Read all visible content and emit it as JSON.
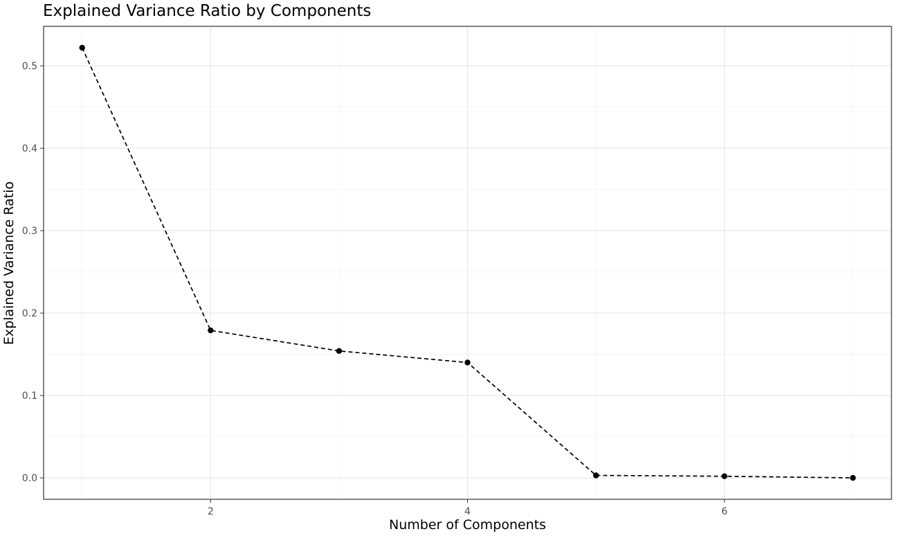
{
  "chart_data": {
    "type": "line",
    "title": "Explained Variance Ratio by Components",
    "xlabel": "Number of Components",
    "ylabel": "Explained Variance Ratio",
    "x": [
      1,
      2,
      3,
      4,
      5,
      6,
      7
    ],
    "values": [
      0.522,
      0.179,
      0.154,
      0.14,
      0.003,
      0.002,
      0.0
    ],
    "xlim": [
      0.7,
      7.3
    ],
    "ylim": [
      -0.026,
      0.548
    ],
    "x_ticks": [
      2,
      4,
      6
    ],
    "x_tick_labels": [
      "2",
      "4",
      "6"
    ],
    "x_minor_ticks": [
      1,
      3,
      5,
      7
    ],
    "y_ticks": [
      0.0,
      0.1,
      0.2,
      0.3,
      0.4,
      0.5
    ],
    "y_tick_labels": [
      "0.0",
      "0.1",
      "0.2",
      "0.3",
      "0.4",
      "0.5"
    ],
    "y_minor_ticks": [
      0.05,
      0.15,
      0.25,
      0.35,
      0.45
    ],
    "grid": true,
    "legend": "none",
    "line_style": "dashed",
    "marker": "point",
    "colors": {
      "line": "#000000",
      "point": "#000000",
      "panel_border": "#333333",
      "grid_major": "#ebebeb",
      "grid_minor": "#f5f5f5",
      "tick_text": "#4d4d4d"
    }
  }
}
